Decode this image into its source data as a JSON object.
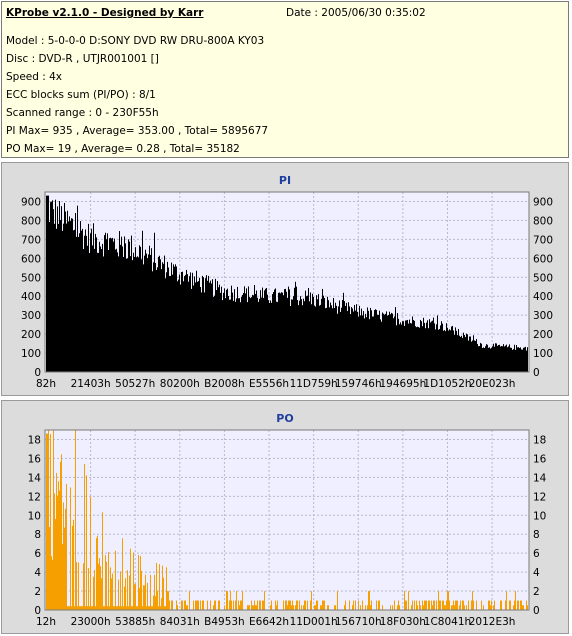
{
  "header": {
    "title": "KProbe v2.1.0 - Designed by Karr",
    "date": "Date : 2005/06/30 0:35:02",
    "lines": [
      "Model : 5-0-0-0 D:SONY    DVD RW DRU-800A  KY03",
      "Disc : DVD-R , UTJR001001 []",
      "Speed : 4x",
      "ECC blocks sum (PI/PO) : 8/1",
      "Scanned range : 0 - 230F55h",
      "PI Max= 935 , Average= 353.00 , Total= 5895677",
      "PO Max= 19 , Average= 0.28 , Total= 35182"
    ]
  },
  "colors": {
    "pi_series": "#000000",
    "po_series": "#f5a000",
    "plot_bg": "#efefff",
    "panel_bg": "#dcdcdc",
    "title_color": "#1f3f9f"
  },
  "chart_data": [
    {
      "type": "area",
      "title": "PI",
      "xlabel": "",
      "ylabel": "",
      "x_ticks": [
        "82h",
        "21403h",
        "50527h",
        "80200h",
        "B2008h",
        "E5556h",
        "11D759h",
        "159746h",
        "194695h",
        "1D1052h",
        "20E023h"
      ],
      "y_ticks": [
        0,
        100,
        200,
        300,
        400,
        500,
        600,
        700,
        800,
        900
      ],
      "ylim": [
        0,
        950
      ],
      "grid": true,
      "series": [
        {
          "x": [
            "82h",
            "21403h",
            "50527h",
            "80200h",
            "B2008h",
            "E5556h",
            "11D759h",
            "159746h",
            "194695h",
            "1D1052h",
            "20E023h",
            "230F55h"
          ],
          "values": [
            935,
            760,
            700,
            560,
            460,
            430,
            420,
            350,
            300,
            270,
            150,
            135
          ]
        }
      ]
    },
    {
      "type": "bar",
      "title": "PO",
      "xlabel": "",
      "ylabel": "",
      "x_ticks": [
        "12h",
        "23000h",
        "53885h",
        "84031h",
        "B4953h",
        "E6642h",
        "11D001h",
        "156710h",
        "18F030h",
        "1C8041h",
        "2012E3h"
      ],
      "y_ticks": [
        0,
        2,
        4,
        6,
        8,
        10,
        12,
        14,
        16,
        18
      ],
      "ylim": [
        0,
        19
      ],
      "grid": true,
      "series": [
        {
          "x": [
            "12h",
            "23000h",
            "53885h",
            "84031h",
            "B4953h",
            "E6642h",
            "11D001h",
            "156710h",
            "18F030h",
            "1C8041h",
            "2012E3h",
            "230F55h"
          ],
          "values": [
            19,
            6,
            3,
            2,
            2,
            1,
            1,
            1,
            1,
            1,
            1,
            1
          ]
        }
      ]
    }
  ]
}
